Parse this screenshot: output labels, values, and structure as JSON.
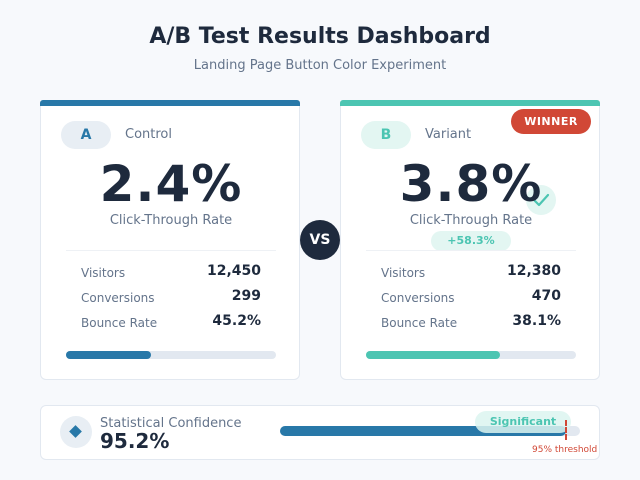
{
  "header": {
    "title": "A/B Test Results Dashboard",
    "subtitle": "Landing Page Button Color Experiment"
  },
  "colors": {
    "control_accent": "#2878a8",
    "variant_accent": "#4cc5b2",
    "winner_badge": "#d14836",
    "dark_text": "#1e2a3d",
    "muted_text": "#64748b",
    "track": "#e2e8f0"
  },
  "variants": [
    {
      "letter": "A",
      "name": "Control",
      "rate": "2.4%",
      "rate_label": "Click-Through Rate",
      "stats": [
        {
          "label": "Visitors",
          "value": "12,450"
        },
        {
          "label": "Conversions",
          "value": "299"
        },
        {
          "label": "Bounce Rate",
          "value": "45.2%"
        }
      ],
      "progress_pct": 40.5
    },
    {
      "letter": "B",
      "name": "Variant",
      "rate": "3.8%",
      "rate_label": "Click-Through Rate",
      "badge": "WINNER",
      "lift": "+58.3%",
      "icon": "check-icon",
      "stats": [
        {
          "label": "Visitors",
          "value": "12,380"
        },
        {
          "label": "Conversions",
          "value": "470"
        },
        {
          "label": "Bounce Rate",
          "value": "38.1%"
        }
      ],
      "progress_pct": 64
    }
  ],
  "vs_label": "VS",
  "confidence": {
    "icon": "diamond-icon",
    "label": "Statistical Confidence",
    "value": "95.2%",
    "bar_pct": 95.2,
    "badge": "Significant",
    "threshold_label": "95% threshold"
  }
}
